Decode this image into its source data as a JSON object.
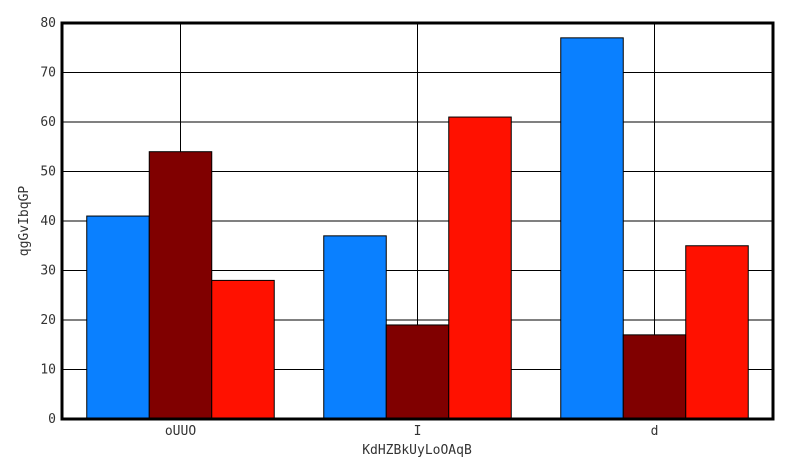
{
  "chart_data": {
    "type": "bar",
    "title": "",
    "xlabel": "KdHZBkUyLoOAqB",
    "ylabel": "qgGvIbqGP",
    "categories": [
      "oUUO",
      "I",
      "d"
    ],
    "series": [
      {
        "values": [
          41,
          37,
          77
        ],
        "color": "#0a80ff"
      },
      {
        "values": [
          54,
          19,
          17
        ],
        "color": "#800000"
      },
      {
        "values": [
          28,
          61,
          35
        ],
        "color": "#ff1100"
      }
    ],
    "ylim": [
      0,
      80
    ],
    "yticks": [
      0,
      10,
      20,
      30,
      40,
      50,
      60,
      70,
      80
    ],
    "grid": true,
    "legend": "none"
  }
}
